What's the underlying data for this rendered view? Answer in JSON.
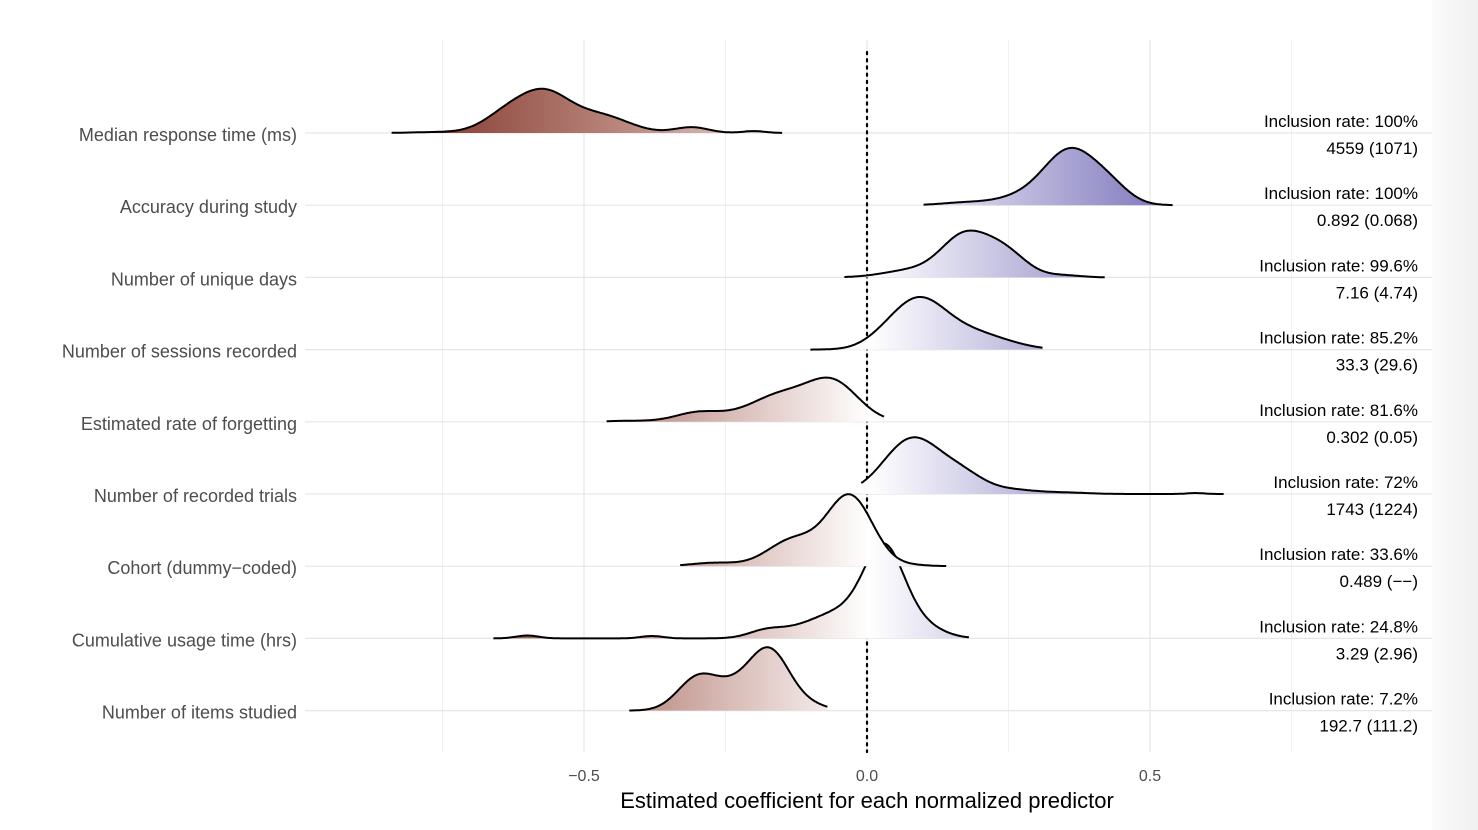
{
  "chart_data": {
    "type": "ridgeline",
    "xlabel": "Estimated coefficient for each normalized predictor",
    "xlim": [
      -0.75,
      0.75
    ],
    "xticks": [
      -0.5,
      0.0,
      0.5
    ],
    "xtick_labels": [
      "−0.5",
      "0.0",
      "0.5"
    ],
    "grid": true,
    "reference_line": 0.0,
    "colors": {
      "negative": "#8b3a2b",
      "positive": "#7b74b8",
      "neutral": "#ffffff"
    },
    "series": [
      {
        "label": "Median response time (ms)",
        "inclusion": "Inclusion rate: 100%",
        "summary": "4559 (1071)",
        "min": -0.84,
        "max": -0.15,
        "peaks": [
          [
            -0.75,
            0.02,
            0.05
          ],
          [
            -0.57,
            0.8,
            0.045
          ],
          [
            -0.64,
            0.33,
            0.04
          ],
          [
            -0.47,
            0.35,
            0.05
          ],
          [
            -0.31,
            0.12,
            0.03
          ],
          [
            -0.2,
            0.04,
            0.02
          ]
        ]
      },
      {
        "label": "Accuracy during study",
        "inclusion": "Inclusion rate: 100%",
        "summary": "0.892 (0.068)",
        "min": 0.1,
        "max": 0.54,
        "peaks": [
          [
            0.36,
            1.1,
            0.045
          ],
          [
            0.43,
            0.32,
            0.035
          ],
          [
            0.28,
            0.18,
            0.05
          ],
          [
            0.17,
            0.05,
            0.04
          ]
        ]
      },
      {
        "label": "Number of unique days",
        "inclusion": "Inclusion rate: 99.6%",
        "summary": "7.16 (4.74)",
        "min": -0.04,
        "max": 0.42,
        "peaks": [
          [
            0.17,
            0.8,
            0.04
          ],
          [
            0.24,
            0.55,
            0.04
          ],
          [
            0.08,
            0.15,
            0.05
          ],
          [
            0.35,
            0.04,
            0.03
          ]
        ]
      },
      {
        "label": "Number of sessions recorded",
        "inclusion": "Inclusion rate: 85.2%",
        "summary": "33.3 (29.6)",
        "min": -0.1,
        "max": 0.31,
        "peaks": [
          [
            0.09,
            1.05,
            0.05
          ],
          [
            0.19,
            0.3,
            0.05
          ],
          [
            0.02,
            0.05,
            0.03
          ],
          [
            0.26,
            0.05,
            0.04
          ]
        ]
      },
      {
        "label": "Estimated rate of forgetting",
        "inclusion": "Inclusion rate: 81.6%",
        "summary": "0.302 (0.05)",
        "min": -0.46,
        "max": 0.03,
        "peaks": [
          [
            -0.06,
            0.8,
            0.045
          ],
          [
            -0.15,
            0.5,
            0.05
          ],
          [
            -0.3,
            0.18,
            0.04
          ],
          [
            -0.22,
            0.1,
            0.05
          ],
          [
            -0.42,
            0.02,
            0.04
          ]
        ]
      },
      {
        "label": "Number of recorded trials",
        "inclusion": "Inclusion rate: 72%",
        "summary": "1743 (1224)",
        "min": -0.01,
        "max": 0.63,
        "peaks": [
          [
            0.08,
            1.15,
            0.05
          ],
          [
            0.17,
            0.35,
            0.04
          ],
          [
            0.26,
            0.08,
            0.04
          ],
          [
            0.35,
            0.03,
            0.04
          ],
          [
            0.58,
            0.02,
            0.015
          ]
        ]
      },
      {
        "label": "Cohort (dummy−coded)",
        "inclusion": "Inclusion rate: 33.6%",
        "summary": "0.489 (−−)",
        "min": -0.33,
        "max": 0.14,
        "peaks": [
          [
            -0.03,
            1.45,
            0.04
          ],
          [
            -0.13,
            0.55,
            0.045
          ],
          [
            -0.27,
            0.07,
            0.04
          ],
          [
            0.08,
            0.02,
            0.03
          ]
        ]
      },
      {
        "label": "Cumulative usage time (hrs)",
        "inclusion": "Inclusion rate: 24.8%",
        "summary": "3.29 (2.96)",
        "min": -0.66,
        "max": 0.18,
        "peaks": [
          [
            0.03,
            1.7,
            0.035
          ],
          [
            0.09,
            0.28,
            0.04
          ],
          [
            -0.04,
            0.5,
            0.05
          ],
          [
            -0.12,
            0.15,
            0.05
          ],
          [
            -0.18,
            0.12,
            0.03
          ],
          [
            -0.6,
            0.06,
            0.02
          ],
          [
            -0.38,
            0.05,
            0.02
          ]
        ]
      },
      {
        "label": "Number of items studied",
        "inclusion": "Inclusion rate: 7.2%",
        "summary": "192.7 (111.2)",
        "min": -0.42,
        "max": -0.07,
        "peaks": [
          [
            -0.17,
            1.15,
            0.035
          ],
          [
            -0.3,
            0.65,
            0.035
          ],
          [
            -0.23,
            0.45,
            0.04
          ],
          [
            -0.1,
            0.1,
            0.03
          ]
        ]
      }
    ]
  }
}
